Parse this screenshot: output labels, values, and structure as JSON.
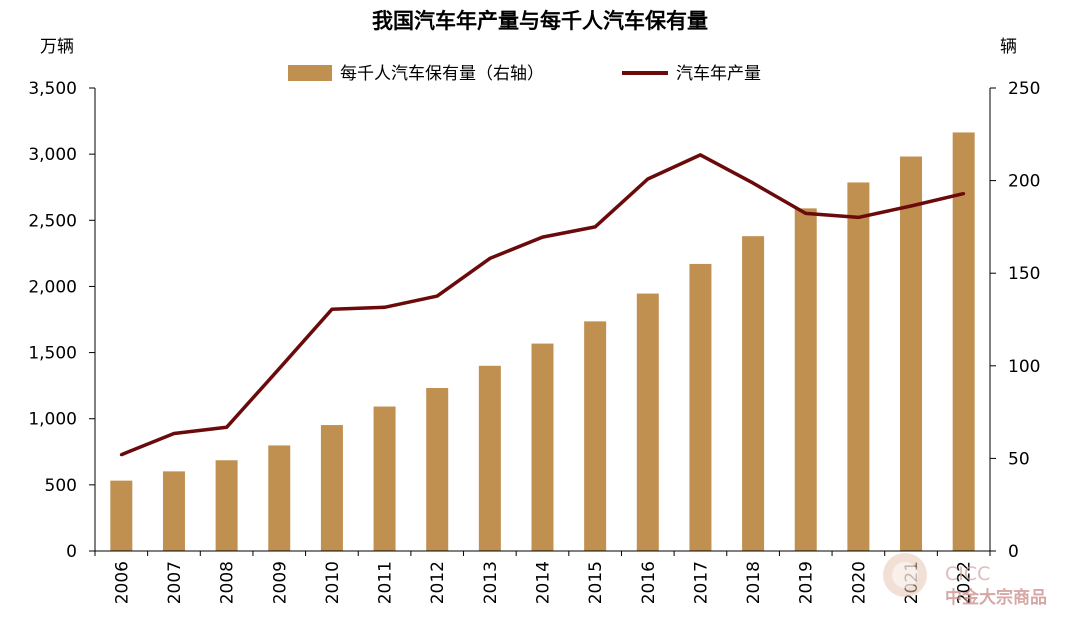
{
  "chart_data": {
    "type": "bar+line",
    "title": "我国汽车年产量与每千人汽车保有量",
    "y_left_unit": "万辆",
    "y_right_unit": "辆",
    "categories": [
      "2006",
      "2007",
      "2008",
      "2009",
      "2010",
      "2011",
      "2012",
      "2013",
      "2014",
      "2015",
      "2016",
      "2017",
      "2018",
      "2019",
      "2020",
      "2021",
      "2022"
    ],
    "y_left_ticks": [
      "0",
      "500",
      "1,000",
      "1,500",
      "2,000",
      "2,500",
      "3,000",
      "3,500"
    ],
    "y_right_ticks": [
      "0",
      "50",
      "100",
      "150",
      "200",
      "250"
    ],
    "y_left_range": [
      0,
      3500
    ],
    "y_right_range": [
      0,
      250
    ],
    "series": [
      {
        "name": "每千人汽车保有量（右轴）",
        "type": "bar",
        "axis": "right",
        "color": "#c09050",
        "values": [
          38,
          43,
          49,
          57,
          68,
          78,
          88,
          100,
          112,
          124,
          139,
          155,
          170,
          185,
          199,
          213,
          226
        ]
      },
      {
        "name": "汽车年产量",
        "type": "line",
        "axis": "left",
        "color": "#6b0a0a",
        "values": [
          728,
          888,
          935,
          1379,
          1827,
          1842,
          1927,
          2212,
          2373,
          2450,
          2812,
          2994,
          2781,
          2552,
          2522,
          2608,
          2702
        ]
      }
    ],
    "legend": "top-center"
  },
  "watermark": {
    "en": "CICC",
    "cn": "中金大宗商品"
  }
}
